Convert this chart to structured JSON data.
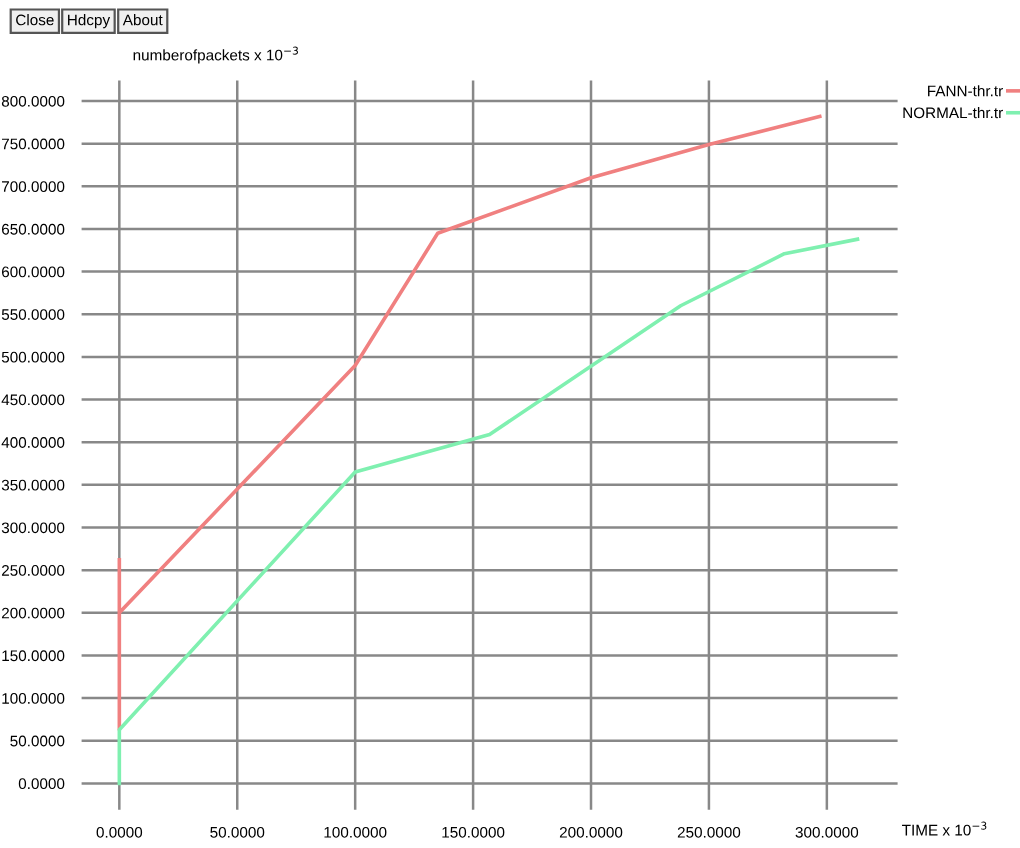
{
  "chart_data": {
    "type": "line",
    "xlabel": "TIME x 10$^{−3}$",
    "ylabel": "numberofpackets x 10$^{−3}$",
    "annotations": [
      "Close",
      "Hdcpy",
      "About"
    ],
    "series": [
      {
        "name": "FANN-thr.tr",
        "color": "#f08080",
        "x": [
          0,
          0,
          0,
          100,
          135,
          200,
          250,
          297
        ],
        "values": [
          262,
          63,
          200,
          490,
          645,
          710,
          749,
          782
        ]
      },
      {
        "name": "NORMAL-thr.tr",
        "color": "#7ff0b0",
        "x": [
          0,
          0,
          100,
          157,
          238,
          282,
          313
        ],
        "values": [
          0,
          63,
          365,
          409,
          560,
          621,
          638
        ]
      }
    ],
    "xlim": [
      -16,
      330
    ],
    "ylim": [
      -31,
      824
    ],
    "xticks": [
      {
        "value": 0,
        "label": "0.0000"
      },
      {
        "value": 50,
        "label": "50.0000"
      },
      {
        "value": 100,
        "label": "100.0000"
      },
      {
        "value": 150,
        "label": "150.0000"
      },
      {
        "value": 200,
        "label": "200.0000"
      },
      {
        "value": 250,
        "label": "250.0000"
      },
      {
        "value": 300,
        "label": "300.0000"
      }
    ],
    "yticks": [
      {
        "value": 0,
        "label": "0.0000"
      },
      {
        "value": 50,
        "label": "50.0000"
      },
      {
        "value": 100,
        "label": "100.0000"
      },
      {
        "value": 150,
        "label": "150.0000"
      },
      {
        "value": 200,
        "label": "200.0000"
      },
      {
        "value": 250,
        "label": "250.0000"
      },
      {
        "value": 300,
        "label": "300.0000"
      },
      {
        "value": 350,
        "label": "350.0000"
      },
      {
        "value": 400,
        "label": "400.0000"
      },
      {
        "value": 450,
        "label": "450.0000"
      },
      {
        "value": 500,
        "label": "500.0000"
      },
      {
        "value": 550,
        "label": "550.0000"
      },
      {
        "value": 600,
        "label": "600.0000"
      },
      {
        "value": 650,
        "label": "650.0000"
      },
      {
        "value": 700,
        "label": "700.0000"
      },
      {
        "value": 750,
        "label": "750.0000"
      },
      {
        "value": 800,
        "label": "800.0000"
      }
    ],
    "grid": true,
    "legend": "top right"
  }
}
